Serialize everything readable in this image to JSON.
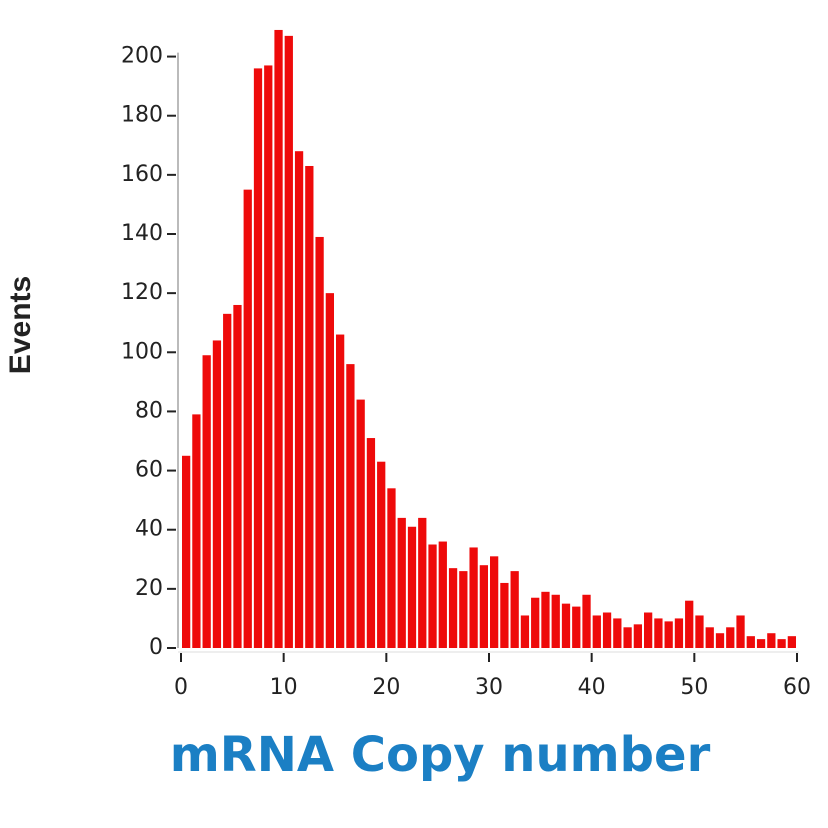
{
  "chart_data": {
    "type": "histogram",
    "xlabel": "mRNA Copy number",
    "ylabel": "Events",
    "bins": [
      0,
      1,
      2,
      3,
      4,
      5,
      6,
      7,
      8,
      9,
      10,
      11,
      12,
      13,
      14,
      15,
      16,
      17,
      18,
      19,
      20,
      21,
      22,
      23,
      24,
      25,
      26,
      27,
      28,
      29,
      30,
      31,
      32,
      33,
      34,
      35,
      36,
      37,
      38,
      39,
      40,
      41,
      42,
      43,
      44,
      45,
      46,
      47,
      48,
      49,
      50,
      51,
      52,
      53,
      54,
      55,
      56,
      57,
      58,
      59,
      60
    ],
    "values": [
      65,
      79,
      99,
      104,
      113,
      116,
      155,
      196,
      197,
      209,
      207,
      168,
      163,
      139,
      120,
      106,
      96,
      84,
      71,
      63,
      54,
      44,
      41,
      44,
      35,
      36,
      27,
      26,
      34,
      28,
      31,
      22,
      26,
      11,
      17,
      19,
      18,
      15,
      14,
      18,
      11,
      12,
      10,
      7,
      8,
      12,
      10,
      9,
      10,
      16,
      11,
      7,
      5,
      7,
      11,
      4,
      3,
      5,
      3,
      4
    ],
    "color": "#ee0a0a",
    "label_color": "#1b7fc4",
    "xlim": [
      0,
      60
    ],
    "ylim": [
      0,
      210
    ],
    "xticks": [
      0,
      10,
      20,
      30,
      40,
      50,
      60
    ],
    "yticks": [
      0,
      20,
      40,
      60,
      80,
      100,
      120,
      140,
      160,
      180,
      200
    ]
  }
}
